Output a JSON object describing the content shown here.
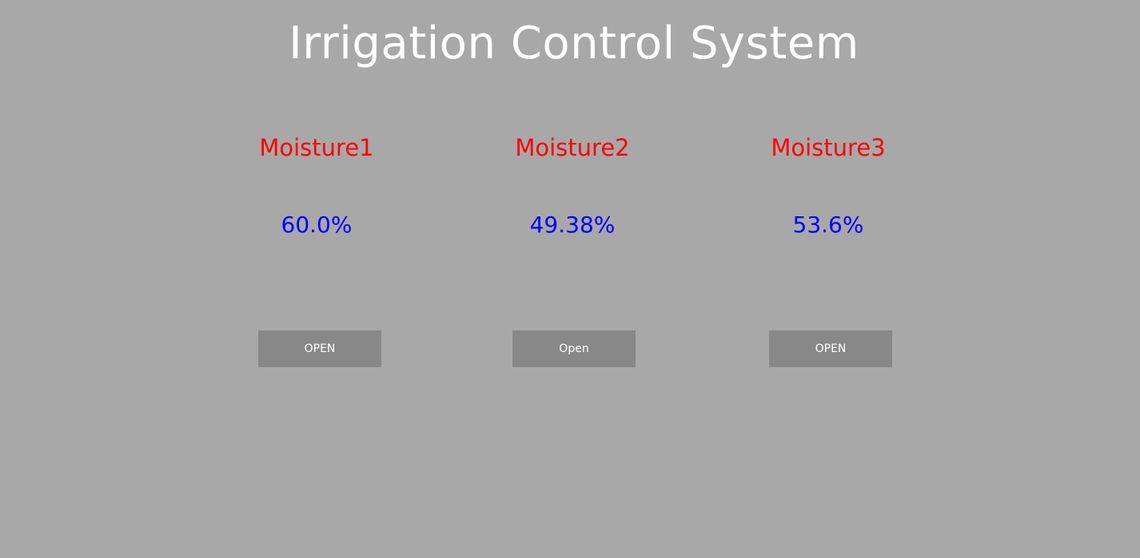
{
  "header": {
    "title": "Irrigation Control System"
  },
  "colors": {
    "background": "#a8a8a8",
    "title": "#ffffff",
    "sensor_label": "#ff0000",
    "sensor_value": "#0000ff",
    "button_background": "#888888",
    "button_text": "#ffffff"
  },
  "sensors": [
    {
      "label": "Moisture1",
      "value": "60.0%",
      "button_label": "OPEN"
    },
    {
      "label": "Moisture2",
      "value": "49.38%",
      "button_label": "Open"
    },
    {
      "label": "Moisture3",
      "value": "53.6%",
      "button_label": "OPEN"
    }
  ]
}
